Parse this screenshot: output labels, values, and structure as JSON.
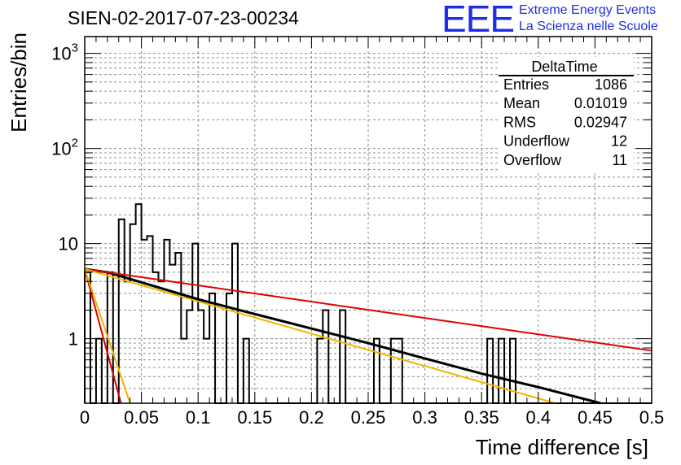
{
  "header": {
    "title": "SIEN-02-2017-07-23-00234",
    "logo": {
      "letters": "EEE",
      "line1": "Extreme Energy Events",
      "line2": "La Scienza nelle Scuole",
      "color": "#1f2ee6"
    }
  },
  "chart_data": {
    "type": "bar",
    "style": "histogram-step",
    "xlabel": "Time difference [s]",
    "ylabel": "Entries/bin",
    "xlim": [
      0,
      0.5
    ],
    "ylim": [
      0.21,
      1500
    ],
    "yscale": "log",
    "grid": true,
    "x_ticks": [
      0,
      0.05,
      0.1,
      0.15,
      0.2,
      0.25,
      0.3,
      0.35,
      0.4,
      0.45,
      0.5
    ],
    "x_tick_labels": [
      "0",
      "0.05",
      "0.1",
      "0.15",
      "0.2",
      "0.25",
      "0.3",
      "0.35",
      "0.4",
      "0.45",
      "0.5"
    ],
    "y_ticks": [
      1,
      10,
      100,
      1000
    ],
    "y_tick_labels": [
      {
        "base": "1",
        "exp": ""
      },
      {
        "base": "10",
        "exp": ""
      },
      {
        "base": "10",
        "exp": "2"
      },
      {
        "base": "10",
        "exp": "3"
      }
    ],
    "bin_width": 0.005,
    "bin_values": [
      5,
      0,
      1,
      0,
      5,
      0,
      18,
      4,
      16,
      26,
      11,
      12,
      5,
      4,
      11,
      6,
      8,
      1,
      2,
      10,
      2,
      1,
      3,
      0,
      0,
      3,
      10,
      0,
      1,
      0,
      0,
      0,
      0,
      0,
      0,
      0,
      0,
      0,
      0,
      0,
      0,
      1,
      2,
      0,
      0,
      2,
      0,
      0,
      0,
      0,
      0,
      1,
      0,
      0,
      1,
      1,
      0,
      0,
      0,
      0,
      0,
      0,
      0,
      0,
      0,
      0,
      0,
      0,
      0,
      0,
      0,
      1,
      0,
      1,
      0,
      1,
      0,
      0,
      0,
      0,
      0,
      0,
      0,
      0,
      0,
      0,
      0,
      0,
      0,
      0,
      0,
      0,
      0,
      0,
      0,
      0,
      0,
      0,
      0,
      0
    ],
    "lines": [
      {
        "color": "#000000",
        "points": [
          [
            0,
            5.4
          ],
          [
            0.02,
            5.0
          ],
          [
            0.1,
            2.6
          ],
          [
            0.14,
            1.95
          ],
          [
            0.25,
            0.9
          ],
          [
            0.3,
            0.62
          ],
          [
            0.35,
            0.43
          ],
          [
            0.4,
            0.31
          ],
          [
            0.455,
            0.21
          ]
        ]
      },
      {
        "color": "#e00000",
        "points": [
          [
            0,
            5.4
          ],
          [
            0.5,
            0.75
          ]
        ]
      },
      {
        "color": "#f0b400",
        "points": [
          [
            0,
            5.4
          ],
          [
            0.415,
            0.21
          ]
        ]
      },
      {
        "color": "#e00000",
        "points": [
          [
            0,
            5.4
          ],
          [
            0.032,
            0.21
          ]
        ]
      },
      {
        "color": "#f0b400",
        "points": [
          [
            0,
            5.4
          ],
          [
            0.04,
            0.21
          ]
        ]
      }
    ]
  },
  "stats": {
    "name": "DeltaTime",
    "rows": [
      {
        "label": "Entries",
        "value": "1086"
      },
      {
        "label": "Mean",
        "value": "0.01019"
      },
      {
        "label": "RMS",
        "value": "0.02947"
      },
      {
        "label": "Underflow",
        "value": "12"
      },
      {
        "label": "Overflow",
        "value": "11"
      }
    ]
  }
}
